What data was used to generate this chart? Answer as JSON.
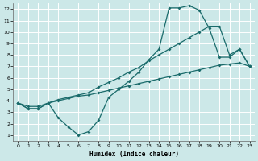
{
  "xlabel": "Humidex (Indice chaleur)",
  "bg_color": "#cce8e8",
  "line_color": "#1a6b6b",
  "xlim": [
    -0.5,
    23.5
  ],
  "ylim": [
    0.5,
    12.5
  ],
  "xticks": [
    0,
    1,
    2,
    3,
    4,
    5,
    6,
    7,
    8,
    9,
    10,
    11,
    12,
    13,
    14,
    15,
    16,
    17,
    18,
    19,
    20,
    21,
    22,
    23
  ],
  "yticks": [
    1,
    2,
    3,
    4,
    5,
    6,
    7,
    8,
    9,
    10,
    11,
    12
  ],
  "line_steep_x": [
    0,
    1,
    2,
    3,
    4,
    5,
    6,
    7,
    8,
    9,
    10,
    11,
    12,
    13,
    14,
    15,
    16,
    17,
    18,
    19,
    20,
    21,
    22,
    23
  ],
  "line_steep_y": [
    3.8,
    3.3,
    3.3,
    3.8,
    2.5,
    1.7,
    1.0,
    1.3,
    2.3,
    4.3,
    5.0,
    5.7,
    6.5,
    7.6,
    8.5,
    12.1,
    12.1,
    12.3,
    11.9,
    10.3,
    7.8,
    7.8,
    8.5,
    7.0
  ],
  "line_diag_x": [
    0,
    1,
    2,
    3,
    4,
    5,
    6,
    7,
    8,
    9,
    10,
    11,
    12,
    13,
    14,
    15,
    16,
    17,
    18,
    19,
    20,
    21,
    22,
    23
  ],
  "line_diag_y": [
    3.8,
    3.5,
    3.5,
    3.8,
    4.0,
    4.2,
    4.4,
    4.5,
    4.7,
    4.9,
    5.1,
    5.3,
    5.5,
    5.7,
    5.9,
    6.1,
    6.3,
    6.5,
    6.7,
    6.9,
    7.1,
    7.2,
    7.3,
    7.0
  ],
  "line_top_x": [
    0,
    1,
    2,
    3,
    4,
    5,
    6,
    7,
    8,
    9,
    10,
    11,
    12,
    13,
    14,
    15,
    16,
    17,
    18,
    19,
    20,
    21,
    22,
    23
  ],
  "line_top_y": [
    3.8,
    3.3,
    3.3,
    3.8,
    4.1,
    4.3,
    4.5,
    4.7,
    5.2,
    5.6,
    6.0,
    6.5,
    6.9,
    7.5,
    8.0,
    8.5,
    9.0,
    9.5,
    10.0,
    10.5,
    10.5,
    8.0,
    8.5,
    7.0
  ]
}
